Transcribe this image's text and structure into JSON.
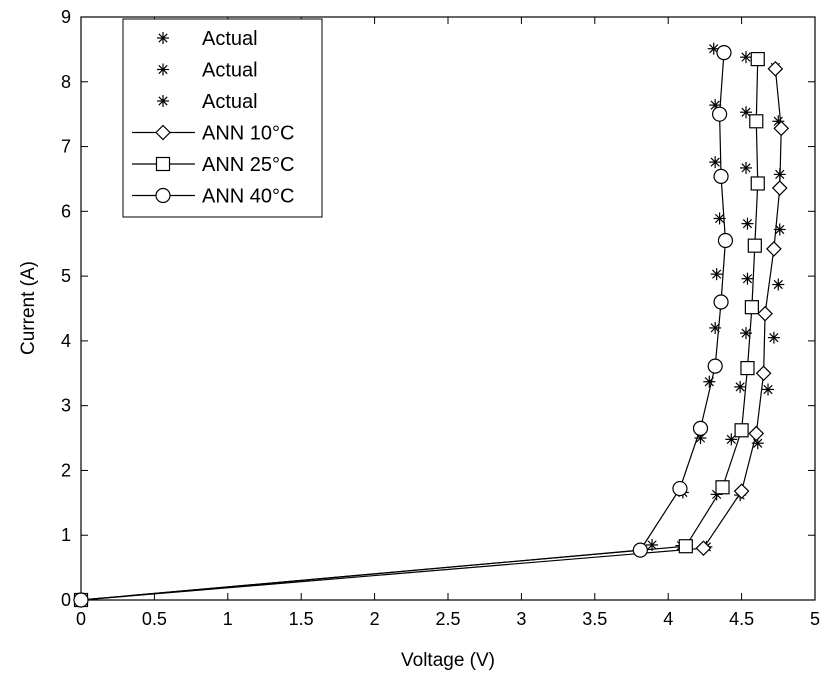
{
  "chart_data": {
    "type": "line",
    "xlabel": "Voltage (V)",
    "ylabel": "Current (A)",
    "xlim": [
      0,
      5
    ],
    "ylim": [
      0,
      9
    ],
    "xticks": [
      "0",
      "0.5",
      "1",
      "1.5",
      "2",
      "2.5",
      "3",
      "3.5",
      "4",
      "4.5",
      "5"
    ],
    "yticks": [
      "0",
      "1",
      "2",
      "3",
      "4",
      "5",
      "6",
      "7",
      "8",
      "9"
    ],
    "grid": false,
    "legend_position": "top-left",
    "series": [
      {
        "name": "Actual",
        "marker": "asterisk",
        "line": false,
        "x": [
          0,
          4.26,
          4.49,
          4.61,
          4.68,
          4.72,
          4.75,
          4.76,
          4.76,
          4.75,
          4.73
        ],
        "y": [
          0,
          0.82,
          1.62,
          2.42,
          3.25,
          4.05,
          4.87,
          5.72,
          6.57,
          7.39,
          8.22
        ]
      },
      {
        "name": "Actual",
        "marker": "asterisk",
        "line": false,
        "x": [
          0,
          4.09,
          4.33,
          4.43,
          4.49,
          4.53,
          4.54,
          4.54,
          4.53,
          4.53,
          4.53
        ],
        "y": [
          0,
          0.84,
          1.63,
          2.48,
          3.29,
          4.12,
          4.96,
          5.81,
          6.67,
          7.53,
          8.38
        ]
      },
      {
        "name": "Actual",
        "marker": "asterisk",
        "line": false,
        "x": [
          0,
          3.89,
          4.1,
          4.22,
          4.28,
          4.32,
          4.33,
          4.35,
          4.32,
          4.32,
          4.31
        ],
        "y": [
          0,
          0.85,
          1.66,
          2.5,
          3.37,
          4.2,
          5.03,
          5.89,
          6.76,
          7.64,
          8.51
        ]
      },
      {
        "name": "ANN 10°C",
        "marker": "diamond",
        "line": true,
        "x": [
          0,
          4.24,
          4.5,
          4.6,
          4.65,
          4.66,
          4.72,
          4.76,
          4.77,
          4.73
        ],
        "y": [
          0,
          0.8,
          1.68,
          2.57,
          3.5,
          4.42,
          5.42,
          6.36,
          7.28,
          8.2
        ]
      },
      {
        "name": "ANN 25°C",
        "marker": "square",
        "line": true,
        "x": [
          0,
          4.12,
          4.37,
          4.5,
          4.54,
          4.57,
          4.59,
          4.61,
          4.6,
          4.61
        ],
        "y": [
          0,
          0.83,
          1.74,
          2.62,
          3.58,
          4.52,
          5.47,
          6.43,
          7.39,
          8.35
        ]
      },
      {
        "name": "ANN 40°C",
        "marker": "circle",
        "line": true,
        "x": [
          0,
          3.81,
          4.08,
          4.22,
          4.32,
          4.36,
          4.39,
          4.36,
          4.35,
          4.38
        ],
        "y": [
          0,
          0.77,
          1.72,
          2.65,
          3.61,
          4.6,
          5.55,
          6.54,
          7.5,
          8.45
        ]
      }
    ]
  }
}
